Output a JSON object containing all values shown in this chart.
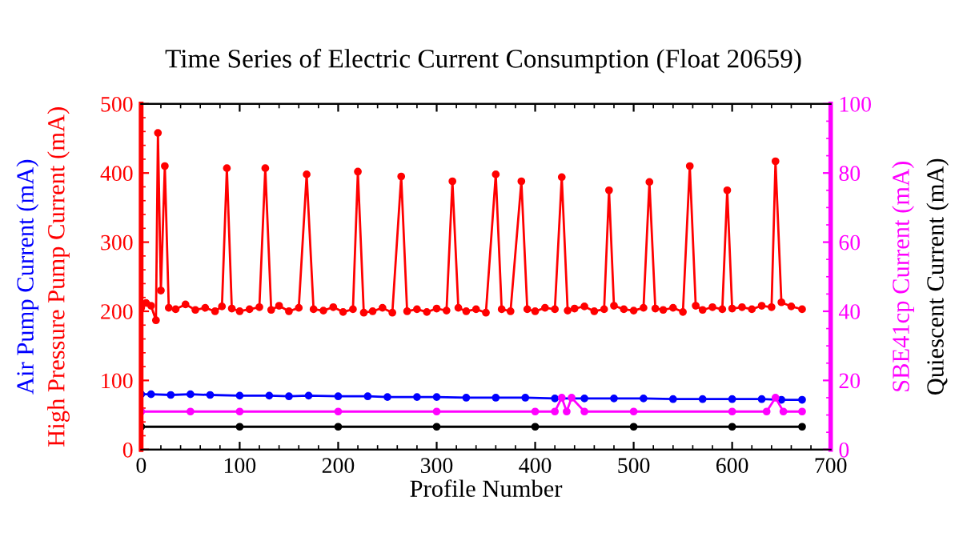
{
  "chart_data": {
    "type": "line",
    "title": "Time Series of Electric Current Consumption (Float 20659)",
    "xlabel": "Profile Number",
    "xlim": [
      0,
      700
    ],
    "xticks": [
      0,
      100,
      200,
      300,
      400,
      500,
      600,
      700
    ],
    "ylim": [
      0,
      500
    ],
    "yticks": [
      0,
      100,
      200,
      300,
      400,
      500
    ],
    "y2lim": [
      0,
      100
    ],
    "y2ticks": [
      0,
      20,
      40,
      60,
      80,
      100
    ],
    "marker": "circle",
    "grid": false,
    "legend": "left",
    "series": [
      {
        "name": "Air Pump Current (mA)",
        "color": "#0000ff",
        "axis": "y",
        "x": [
          0,
          10,
          30,
          50,
          70,
          100,
          130,
          150,
          170,
          200,
          230,
          250,
          280,
          300,
          330,
          360,
          390,
          420,
          450,
          480,
          510,
          540,
          570,
          600,
          630,
          650,
          671
        ],
        "values": [
          80,
          80,
          79,
          80,
          79,
          78,
          78,
          77,
          78,
          77,
          77,
          76,
          76,
          76,
          75,
          75,
          75,
          74,
          74,
          74,
          74,
          73,
          73,
          73,
          73,
          72,
          72
        ]
      },
      {
        "name": "High Pressure Pump Current (mA)",
        "color": "#ff0000",
        "axis": "y",
        "x": [
          0,
          5,
          10,
          15,
          17,
          20,
          24,
          28,
          35,
          45,
          55,
          65,
          75,
          82,
          87,
          92,
          100,
          110,
          120,
          126,
          132,
          140,
          150,
          160,
          168,
          175,
          185,
          195,
          205,
          215,
          220,
          226,
          235,
          245,
          255,
          264,
          270,
          280,
          290,
          300,
          310,
          316,
          322,
          330,
          340,
          350,
          360,
          366,
          375,
          386,
          392,
          400,
          410,
          420,
          427,
          433,
          440,
          450,
          460,
          470,
          475,
          480,
          490,
          500,
          510,
          516,
          522,
          530,
          540,
          550,
          557,
          563,
          570,
          580,
          590,
          595,
          600,
          610,
          620,
          630,
          640,
          644,
          650,
          660,
          671
        ],
        "values": [
          205,
          212,
          208,
          187,
          458,
          230,
          410,
          205,
          203,
          210,
          202,
          205,
          200,
          207,
          407,
          204,
          200,
          203,
          206,
          407,
          202,
          208,
          200,
          205,
          398,
          203,
          201,
          206,
          199,
          203,
          402,
          198,
          200,
          205,
          198,
          395,
          200,
          203,
          199,
          204,
          201,
          388,
          205,
          200,
          203,
          198,
          398,
          203,
          200,
          388,
          203,
          200,
          205,
          203,
          394,
          201,
          204,
          207,
          200,
          203,
          375,
          208,
          203,
          201,
          205,
          387,
          204,
          202,
          205,
          199,
          410,
          208,
          202,
          206,
          203,
          375,
          204,
          206,
          203,
          208,
          206,
          417,
          213,
          207,
          203
        ]
      },
      {
        "name": "SBE41cp Current (mA)",
        "color": "#ff00ff",
        "axis": "y2",
        "x": [
          0,
          50,
          100,
          200,
          300,
          400,
          420,
          427,
          432,
          437,
          450,
          500,
          600,
          635,
          644,
          652,
          671
        ],
        "values": [
          11,
          11,
          11,
          11,
          11,
          11,
          11,
          15,
          11,
          15,
          11,
          11,
          11,
          11,
          15,
          11,
          11
        ]
      },
      {
        "name": "Quiescent Current (mA)",
        "color": "#000000",
        "axis": "y2",
        "x": [
          0,
          100,
          200,
          300,
          400,
          500,
          600,
          671
        ],
        "values": [
          6.6,
          6.6,
          6.6,
          6.6,
          6.6,
          6.6,
          6.6,
          6.6
        ]
      }
    ]
  }
}
